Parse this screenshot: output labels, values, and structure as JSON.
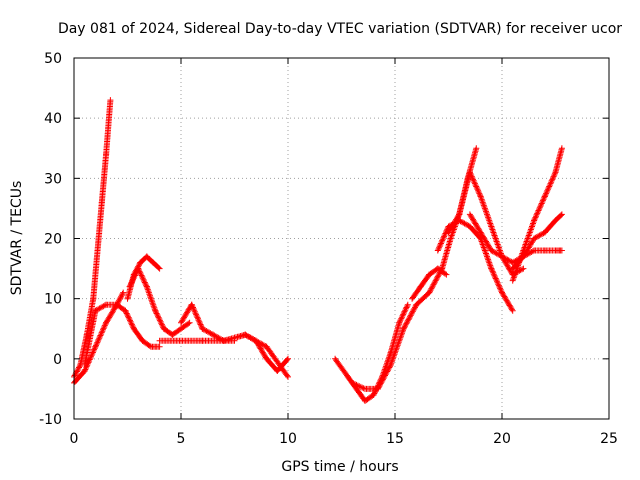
{
  "chart_data": {
    "type": "scatter",
    "title": "Day 081 of 2024, Sidereal Day-to-day VTEC variation (SDTVAR) for receiver ucor",
    "xlabel": "GPS time / hours",
    "ylabel": "SDTVAR / TECUs",
    "xlim": [
      0,
      25
    ],
    "ylim": [
      -10,
      50
    ],
    "xticks": [
      0,
      5,
      10,
      15,
      20,
      25
    ],
    "yticks": [
      -10,
      0,
      10,
      20,
      30,
      40,
      50
    ],
    "grid": true,
    "legend": "none",
    "marker": "+",
    "color": "#ff0000",
    "series": [
      {
        "name": "track-1",
        "x": [
          0.0,
          0.3,
          0.6,
          0.9,
          1.1,
          1.3,
          1.5,
          1.7
        ],
        "y": [
          -3,
          -1,
          4,
          10,
          18,
          26,
          34,
          43
        ]
      },
      {
        "name": "track-2",
        "x": [
          0.0,
          0.5,
          1.0,
          1.5,
          2.0,
          2.3
        ],
        "y": [
          -4,
          -2,
          2,
          6,
          9,
          11
        ]
      },
      {
        "name": "track-3",
        "x": [
          0.5,
          1.0,
          1.5,
          2.0,
          2.4,
          2.8,
          3.2,
          3.6,
          4.0
        ],
        "y": [
          -1,
          8,
          9,
          9,
          8,
          5,
          3,
          2,
          2
        ]
      },
      {
        "name": "track-4",
        "x": [
          2.5,
          2.8,
          3.1,
          3.4,
          3.7,
          4.0
        ],
        "y": [
          10,
          14,
          16,
          17,
          16,
          15
        ]
      },
      {
        "name": "track-5",
        "x": [
          2.6,
          3.0,
          3.4,
          3.8,
          4.2,
          4.6,
          5.0,
          5.4
        ],
        "y": [
          12,
          15,
          12,
          8,
          5,
          4,
          5,
          6
        ]
      },
      {
        "name": "track-6",
        "x": [
          4.0,
          5.0,
          6.0,
          7.0,
          8.0,
          9.0,
          10.0
        ],
        "y": [
          3,
          3,
          3,
          3,
          4,
          2,
          -3
        ]
      },
      {
        "name": "track-7",
        "x": [
          5.0,
          5.5,
          6.0,
          6.5,
          7.0,
          7.5
        ],
        "y": [
          6,
          9,
          5,
          4,
          3,
          3
        ]
      },
      {
        "name": "track-8",
        "x": [
          7.0,
          8.0,
          8.5,
          9.0,
          9.5,
          10.0
        ],
        "y": [
          3,
          4,
          3,
          0,
          -2,
          0
        ]
      },
      {
        "name": "track-9",
        "x": [
          12.2,
          12.8,
          13.2,
          13.6,
          14.0,
          14.4,
          14.8,
          15.2,
          15.6
        ],
        "y": [
          0,
          -3,
          -5,
          -7,
          -6,
          -3,
          1,
          6,
          9
        ]
      },
      {
        "name": "track-10",
        "x": [
          13.0,
          13.6,
          14.2,
          14.8,
          15.4,
          16.0,
          16.6,
          17.2,
          17.6,
          18.0,
          18.4,
          18.8
        ],
        "y": [
          -4,
          -5,
          -5,
          -1,
          5,
          9,
          11,
          15,
          20,
          24,
          30,
          35
        ]
      },
      {
        "name": "track-11",
        "x": [
          17.0,
          17.5,
          18.0,
          18.5,
          19.0,
          19.5,
          20.0,
          20.5
        ],
        "y": [
          18,
          22,
          23,
          22,
          20,
          15,
          11,
          8
        ]
      },
      {
        "name": "track-12",
        "x": [
          17.5,
          18.0,
          18.5,
          19.0,
          19.5,
          20.0,
          20.5,
          21.0
        ],
        "y": [
          21,
          24,
          31,
          27,
          22,
          17,
          14,
          15
        ]
      },
      {
        "name": "track-13",
        "x": [
          18.5,
          19.0,
          19.5,
          20.0,
          20.5,
          21.0,
          21.5,
          22.0,
          22.5,
          22.8
        ],
        "y": [
          24,
          21,
          18,
          17,
          16,
          17,
          18,
          18,
          18,
          18
        ]
      },
      {
        "name": "track-14",
        "x": [
          20.5,
          21.0,
          21.5,
          22.0,
          22.5,
          22.8
        ],
        "y": [
          13,
          18,
          23,
          27,
          31,
          35
        ]
      },
      {
        "name": "track-15",
        "x": [
          20.5,
          21.0,
          21.5,
          22.0,
          22.5,
          22.8
        ],
        "y": [
          15,
          17,
          20,
          21,
          23,
          24
        ]
      },
      {
        "name": "track-16",
        "x": [
          15.8,
          16.2,
          16.6,
          17.0,
          17.4
        ],
        "y": [
          10,
          12,
          14,
          15,
          14
        ]
      }
    ]
  }
}
